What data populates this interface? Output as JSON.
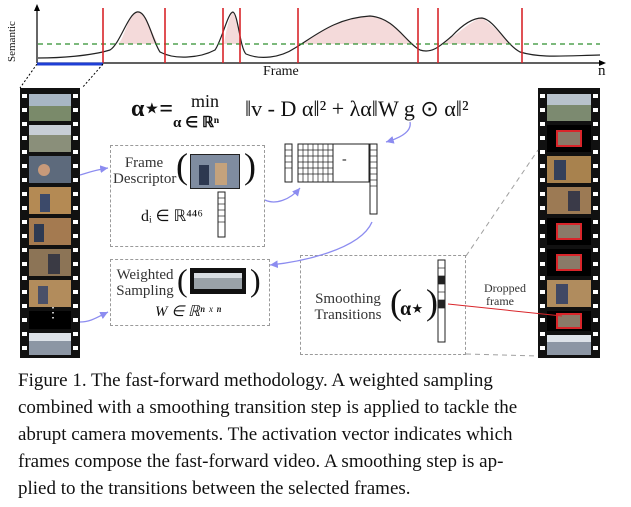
{
  "plot": {
    "ylabel": "Semantic",
    "xlabel": "Frame",
    "x_end": "n"
  },
  "formula": {
    "lhs": "α⋆=",
    "min": "min",
    "sub": "α ∈ ℝⁿ",
    "body": "‖v - D α‖² + λα‖W g ⊙ α‖²"
  },
  "descriptor": {
    "label_1": "Frame",
    "label_2": "Descriptor",
    "eq": "dᵢ ∈ ℝ⁴⁴⁶"
  },
  "sampling": {
    "label_1": "Weighted",
    "label_2": "Sampling",
    "eq": "W ∈ ℝⁿ ˣ ⁿ"
  },
  "smoothing": {
    "label_1": "Smoothing",
    "label_2": "Transitions",
    "symbol": "α⋆"
  },
  "matrix_minus": "-",
  "dropped": {
    "line1": "Dropped",
    "line2": "frame"
  },
  "ellipsis": "⋮",
  "caption": {
    "l1": "Figure 1.  The fast-forward methodology.  A weighted sampling",
    "l2": "combined with a smoothing transition step is applied to tackle the",
    "l3": "abrupt camera movements. The activation vector indicates which",
    "l4": "frames compose the fast-forward video.  A smoothing step is ap-",
    "l5": "plied to the transitions between the selected frames."
  },
  "colors": {
    "curve_fill": "#f4dada",
    "red_line": "#d9252a",
    "green_dash": "#2f8f2f",
    "blue": "#1f3fd6",
    "purple_arrow": "#8c8cf0"
  }
}
